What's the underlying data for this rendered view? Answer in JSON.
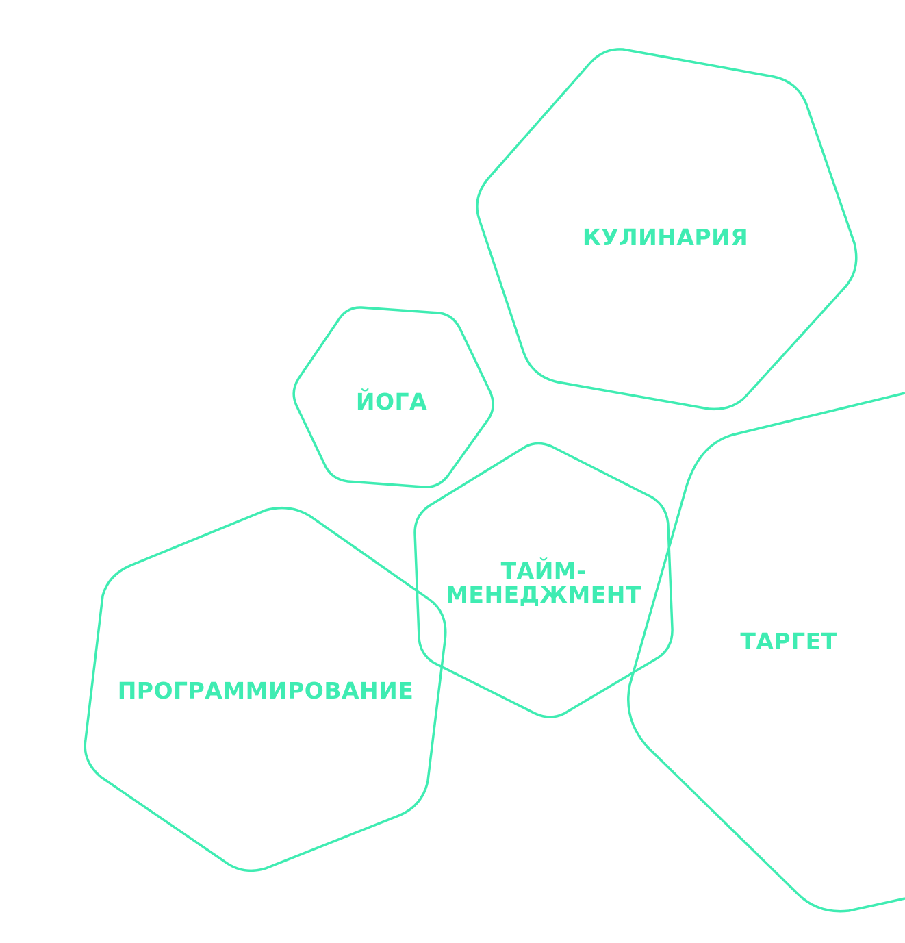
{
  "colors": {
    "accent": "#3fecb2",
    "background": "#ffffff"
  },
  "topics": [
    {
      "id": "kulinariya",
      "label": "КУЛИНАРИЯ"
    },
    {
      "id": "yoga",
      "label": "ЙОГА"
    },
    {
      "id": "taim",
      "label_line1": "ТАЙМ-",
      "label_line2": "МЕНЕДЖМЕНТ"
    },
    {
      "id": "target",
      "label": "ТАРГЕТ"
    },
    {
      "id": "programmirovanie",
      "label": "ПРОГРАММИРОВАНИЕ"
    }
  ]
}
